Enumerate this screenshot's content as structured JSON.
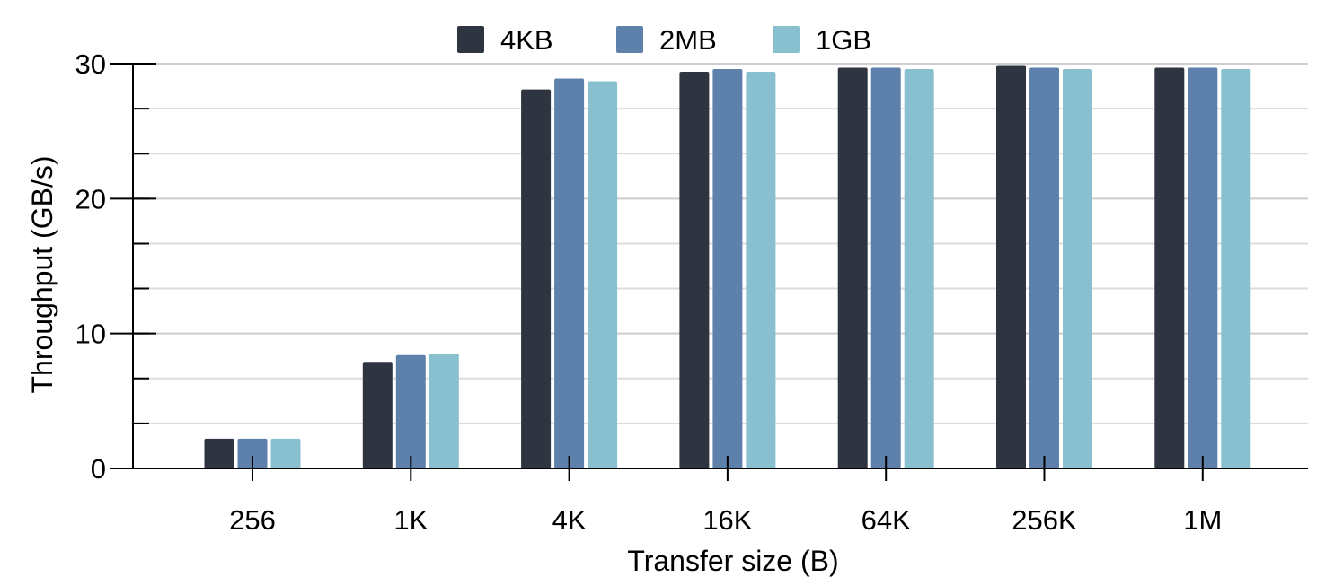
{
  "chart_data": {
    "type": "bar",
    "title": "",
    "xlabel": "Transfer size (B)",
    "ylabel": "Throughput (GB/s)",
    "categories": [
      "256",
      "1K",
      "4K",
      "16K",
      "64K",
      "256K",
      "1M"
    ],
    "series": [
      {
        "name": "4KB",
        "color": "#2e3440",
        "values": [
          2.2,
          7.9,
          28.1,
          29.4,
          29.7,
          29.9,
          29.7
        ]
      },
      {
        "name": "2MB",
        "color": "#5e81ac",
        "values": [
          2.2,
          8.4,
          28.9,
          29.6,
          29.7,
          29.7,
          29.7
        ]
      },
      {
        "name": "1GB",
        "color": "#88c0d0",
        "values": [
          2.2,
          8.5,
          28.7,
          29.4,
          29.6,
          29.6,
          29.6
        ]
      }
    ],
    "ylim": [
      0,
      30
    ],
    "yticks": [
      "0",
      "10",
      "20",
      "30"
    ],
    "grid": true,
    "legend": "top-center"
  }
}
